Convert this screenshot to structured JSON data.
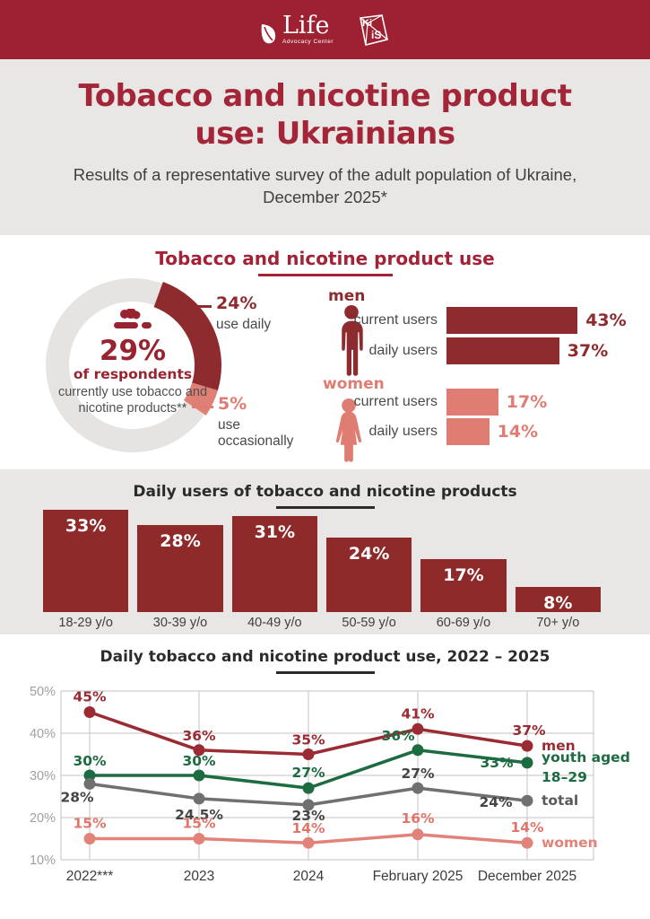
{
  "header": {
    "life_logo": {
      "text": "Life",
      "subtext": "Advocacy Center"
    },
    "kiis_logo": {
      "text_top": "Ki",
      "text_bottom": "iS"
    }
  },
  "hero": {
    "title_line1": "Tobacco and nicotine product",
    "title_line2": "use: Ukrainians",
    "subtitle": "Results of a representative survey of the adult population of Ukraine, December 2025*"
  },
  "colors": {
    "brand_red": "#9e2132",
    "title_red": "#a32638",
    "bar_red": "#8e2a2c",
    "salmon": "#e07f74",
    "green": "#1d6b40",
    "gray_line": "#707070",
    "section_gray": "#e9e7e5"
  },
  "chart_data": [
    {
      "id": "usage-donut",
      "type": "pie",
      "title": "Tobacco and nicotine product use",
      "center": {
        "value": "29%",
        "label": "of respondents",
        "description": "currently use tobacco and nicotine products**"
      },
      "segments": [
        {
          "value": 24,
          "label": "24%",
          "description": "use daily",
          "color": "#8e2b2e"
        },
        {
          "value": 5,
          "label": "5%",
          "description": "use occasionally",
          "color": "#e07f74"
        }
      ],
      "ring_color": "#e6e4e2",
      "start_angle_deg": 20
    },
    {
      "id": "gender-bars",
      "type": "bar",
      "orientation": "horizontal",
      "groups": [
        {
          "name": "men",
          "color": "#8e2b2e",
          "rows": [
            {
              "label": "current users",
              "value": 43,
              "display": "43%"
            },
            {
              "label": "daily users",
              "value": 37,
              "display": "37%"
            }
          ]
        },
        {
          "name": "women",
          "color": "#df7d72",
          "rows": [
            {
              "label": "current users",
              "value": 17,
              "display": "17%"
            },
            {
              "label": "daily users",
              "value": 14,
              "display": "14%"
            }
          ]
        }
      ]
    },
    {
      "id": "age-bars",
      "type": "bar",
      "title": "Daily users of tobacco and nicotine products",
      "categories": [
        "18-29 y/o",
        "30-39 y/o",
        "40-49 y/o",
        "50-59 y/o",
        "60-69 y/o",
        "70+ y/o"
      ],
      "values": [
        33,
        28,
        31,
        24,
        17,
        8
      ],
      "labels": [
        "33%",
        "28%",
        "31%",
        "24%",
        "17%",
        "8%"
      ],
      "bar_color": "#8e2a2a",
      "value_label_color": "#ffffff"
    },
    {
      "id": "trend-lines",
      "type": "line",
      "title": "Daily tobacco and nicotine product use, 2022 – 2025",
      "x_labels": [
        "2022***",
        "2023",
        "2024",
        "February 2025",
        "December 2025"
      ],
      "y_ticks": [
        50,
        40,
        30,
        20,
        10
      ],
      "y_tick_labels": [
        "50%",
        "40%",
        "30%",
        "20%",
        "10%"
      ],
      "ylim": [
        10,
        50
      ],
      "grid": true,
      "legend_position": "right-of-last-point",
      "series": [
        {
          "name": "men",
          "name_lines": [
            "men"
          ],
          "color": "#9b2b33",
          "label_color": "#9b2b33",
          "values": [
            45,
            36,
            35,
            41,
            37
          ],
          "labels": [
            "45%",
            "36%",
            "35%",
            "41%",
            "37%"
          ],
          "label_offsets": [
            [
              0,
              -12
            ],
            [
              0,
              -11
            ],
            [
              0,
              -11
            ],
            [
              0,
              -12
            ],
            [
              2,
              -12
            ]
          ]
        },
        {
          "name": "youth aged 18–29",
          "name_lines": [
            "youth aged",
            "18–29"
          ],
          "color": "#1d6b40",
          "label_color": "#1d6b40",
          "values": [
            30,
            30,
            27,
            36,
            33
          ],
          "labels": [
            "30%",
            "30%",
            "27%",
            "36%",
            "33%"
          ],
          "label_offsets": [
            [
              0,
              -11
            ],
            [
              0,
              -11
            ],
            [
              0,
              -12
            ],
            [
              -22,
              -11
            ],
            [
              -34,
              5
            ]
          ]
        },
        {
          "name": "total",
          "name_lines": [
            "total"
          ],
          "color": "#707070",
          "label_color": "#454545",
          "values": [
            28,
            24.5,
            23,
            27,
            24
          ],
          "labels": [
            "28%",
            "24.5%",
            "23%",
            "27%",
            "24%"
          ],
          "label_offsets": [
            [
              -14,
              20
            ],
            [
              0,
              23
            ],
            [
              0,
              17
            ],
            [
              0,
              -11
            ],
            [
              -35,
              7
            ]
          ]
        },
        {
          "name": "women",
          "name_lines": [
            "women"
          ],
          "color": "#e28379",
          "label_color": "#e0766b",
          "values": [
            15,
            15,
            14,
            16,
            14
          ],
          "labels": [
            "15%",
            "15%",
            "14%",
            "16%",
            "14%"
          ],
          "label_offsets": [
            [
              0,
              -12
            ],
            [
              0,
              -12
            ],
            [
              0,
              -11
            ],
            [
              0,
              -13
            ],
            [
              0,
              -12
            ]
          ]
        }
      ]
    }
  ]
}
